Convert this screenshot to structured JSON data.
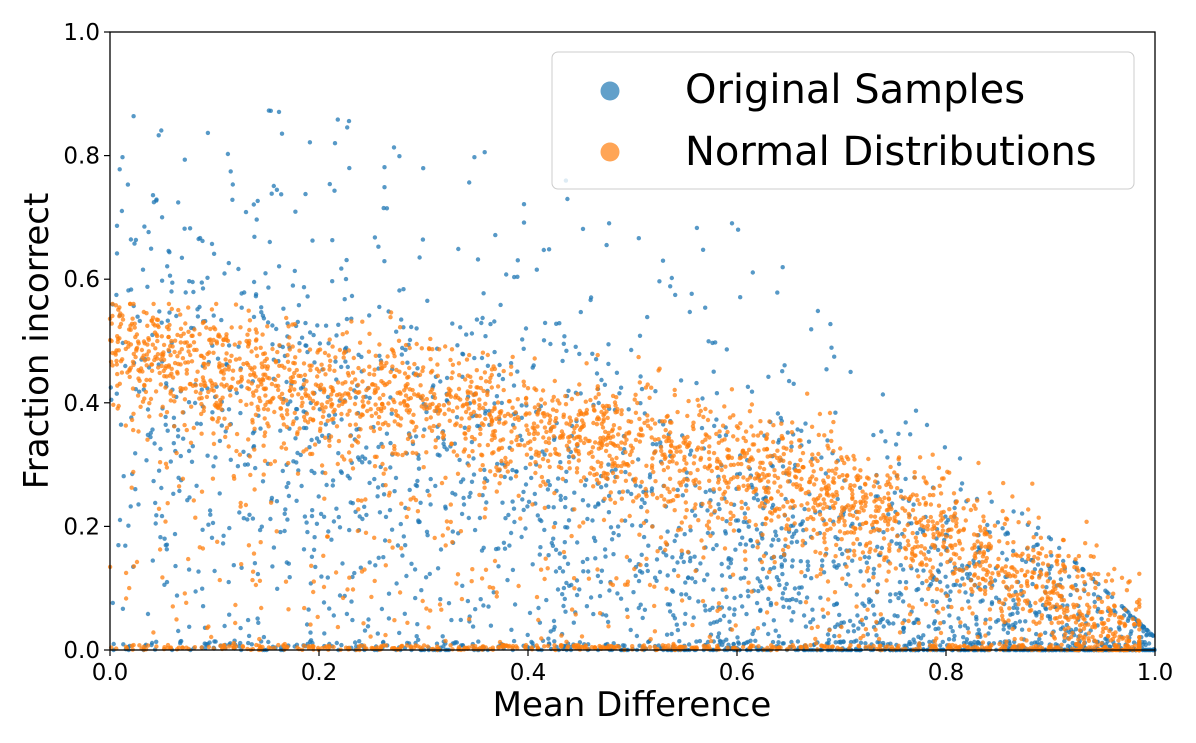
{
  "chart_data": {
    "type": "scatter",
    "title": "",
    "xlabel": "Mean Difference",
    "ylabel": "Fraction incorrect",
    "xlim": [
      0.0,
      1.0
    ],
    "ylim": [
      0.0,
      1.0
    ],
    "xticks": [
      "0.0",
      "0.2",
      "0.4",
      "0.6",
      "0.8",
      "1.0"
    ],
    "yticks": [
      "0.0",
      "0.2",
      "0.4",
      "0.6",
      "0.8",
      "1.0"
    ],
    "grid": false,
    "legend_position": "top-right",
    "series": [
      {
        "name": "Original Samples",
        "color": "#1f77b4",
        "trend": [
          [
            0.0,
            0.45
          ],
          [
            0.1,
            0.4
          ],
          [
            0.2,
            0.36
          ],
          [
            0.3,
            0.3
          ],
          [
            0.4,
            0.25
          ],
          [
            0.5,
            0.18
          ],
          [
            0.6,
            0.13
          ],
          [
            0.7,
            0.09
          ],
          [
            0.8,
            0.05
          ],
          [
            0.9,
            0.02
          ],
          [
            1.0,
            0.0
          ]
        ],
        "spread": 0.22,
        "upper_tail_max": [
          [
            0.0,
            0.86
          ],
          [
            0.12,
            0.88
          ],
          [
            0.3,
            0.84
          ],
          [
            0.45,
            0.78
          ],
          [
            0.6,
            0.72
          ],
          [
            0.7,
            0.55
          ],
          [
            0.8,
            0.33
          ],
          [
            0.9,
            0.18
          ],
          [
            1.0,
            0.02
          ]
        ]
      },
      {
        "name": "Normal Distributions",
        "color": "#ff7f0e",
        "trend": [
          [
            0.0,
            0.49
          ],
          [
            0.1,
            0.45
          ],
          [
            0.2,
            0.42
          ],
          [
            0.3,
            0.4
          ],
          [
            0.4,
            0.37
          ],
          [
            0.5,
            0.33
          ],
          [
            0.6,
            0.3
          ],
          [
            0.7,
            0.25
          ],
          [
            0.8,
            0.19
          ],
          [
            0.9,
            0.1
          ],
          [
            0.97,
            0.02
          ],
          [
            1.0,
            0.0
          ]
        ],
        "spread": 0.05
      }
    ]
  }
}
